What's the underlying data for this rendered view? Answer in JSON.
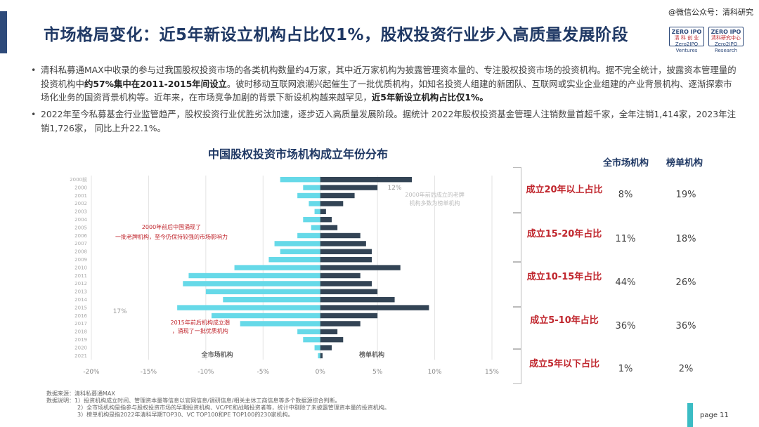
{
  "title": "市场格局变化：近5年新设立机构占比仅1%，股权投资行业步入高质量发展阶段",
  "watermark": "@微信公众号：清科研究",
  "logos": {
    "left": {
      "top": "ZERO IPO",
      "mid": "清 科 创 业",
      "bottom": "Zero2IPO Ventures"
    },
    "right": {
      "top": "ZERO IPO",
      "mid": "清科研究中心",
      "bottom": "Zero2IPO Research"
    }
  },
  "bullets": [
    {
      "text_a": "清科私募通MAX中收录的参与过我国股权投资市场的各类机构数量约4万家，其中近万家机构为披露管理资本量的、专注股权投资市场的投资机构。据不完全统计，披露资本管理量的投资机构中",
      "bold_a": "约57%集中在2011-2015年间设立",
      "text_b": "。彼时移动互联网浪潮兴起催生了一批优质机构，如知名投资人组建的新团队、互联网或实业企业组建的产业背景机构、逐渐探索市场化业务的国资背景机构等。近年来，在市场竞争加剧的背景下新设机构越来越罕见，",
      "bold_b": "近5年新设立机构占比仅1%。"
    },
    {
      "text": "2022年至今私募基金行业监管趋严，股权投资行业优胜劣汰加速，逐步迈入高质量发展阶段。据统计 2022年股权投资基金管理人注销数量首超千家，全年注销1,414家，2023年注销1,726家， 同比上升22.1%。"
    }
  ],
  "chart_data": {
    "type": "bar",
    "title": "中国股权投资市场机构成立年份分布",
    "categories": [
      "2000前",
      "2000",
      "2001",
      "2002",
      "2003",
      "2004",
      "2005",
      "2006",
      "2007",
      "2008",
      "2009",
      "2010",
      "2011",
      "2012",
      "2013",
      "2014",
      "2015",
      "2016",
      "2017",
      "2018",
      "2019",
      "2020",
      "2021"
    ],
    "series": [
      {
        "name": "全市场机构",
        "values": [
          -3.5,
          -1.5,
          -2,
          -1,
          -0.5,
          -1.5,
          -0.8,
          -2,
          -4,
          -3.5,
          -4.5,
          -7.5,
          -11.5,
          -12,
          -10,
          -8.5,
          -12.5,
          -9.5,
          -7,
          -2,
          -1.5,
          -0.5,
          -0.2
        ],
        "color": "#66d9e8"
      },
      {
        "name": "榜单机构",
        "values": [
          8,
          5,
          3,
          2,
          0.5,
          1,
          1.5,
          3.5,
          4,
          4.5,
          4.5,
          7,
          3.5,
          4.5,
          5,
          6.5,
          9.5,
          5,
          3.5,
          1.5,
          2,
          1,
          0.2
        ],
        "color": "#334455"
      }
    ],
    "xticks": [
      "-20%",
      "-15%",
      "-10%",
      "-5%",
      "0%",
      "5%",
      "10%",
      "15%"
    ],
    "xlim": [
      -20,
      15
    ],
    "annotations": [
      "2000年前后中国涌现了一批老牌机构，至今仍保持较强的市场影响力",
      "2015年前后机构成立潮，涌现了一批优质机构",
      "2000年前后成立的老牌机构多数为榜单机构",
      "12%",
      "17%"
    ],
    "legend": [
      "全市场机构",
      "榜单机构"
    ]
  },
  "table": {
    "headers": {
      "all": "全市场机构",
      "rank": "榜单机构"
    },
    "rows": [
      {
        "label": "成立20年以上占比",
        "all": "8%",
        "rank": "19%"
      },
      {
        "label": "成立15-20年占比",
        "all": "11%",
        "rank": "18%"
      },
      {
        "label": "成立10-15年占比",
        "all": "44%",
        "rank": "26%"
      },
      {
        "label": "成立5-10年占比",
        "all": "36%",
        "rank": "36%"
      },
      {
        "label": "成立5年以下占比",
        "all": "1%",
        "rank": "2%"
      }
    ]
  },
  "footnotes": {
    "source": "数据来源：清科私募通MAX",
    "notes": [
      "数据说明：1）投资机构成立时间、管理资本量等信息以官网信息/调研信息/相关主体工商信息等多个数据源综合判断。",
      "2）全市场机构是指参与股权投资市场的早期投资机构、VC/PE和战略投资者等，统计中剔除了未披露管理资本量的投资机构。",
      "3）榜单机构是指2022年清科早期TOP30、VC TOP100和PE TOP100的230家机构。"
    ]
  },
  "page": "page  11",
  "colors": {
    "accent": "#2e4a7a",
    "title": "#1f3864",
    "highlight": "#c0262d",
    "cyan": "#66d9e8",
    "dark": "#334455",
    "page_tab": "#3bbcc4"
  }
}
